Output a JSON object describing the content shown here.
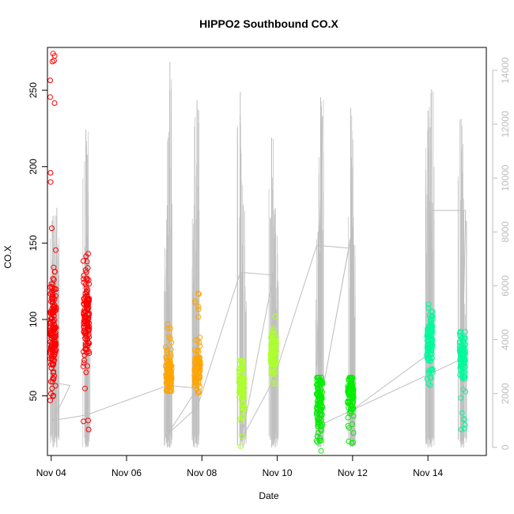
{
  "chart_data": {
    "type": "scatter",
    "title": "HIPPO2 Southbound CO.X",
    "xlabel": "Date",
    "ylabel": "CO.X",
    "x_ticks": [
      "Nov 04",
      "Nov 06",
      "Nov 08",
      "Nov 10",
      "Nov 12",
      "Nov 14"
    ],
    "y_ticks": [
      50,
      100,
      150,
      200,
      250
    ],
    "y2_ticks": [
      0,
      2000,
      4000,
      6000,
      8000,
      10000,
      12000,
      14000
    ],
    "xlim": [
      3.9,
      15.55
    ],
    "ylim": [
      11,
      278
    ],
    "y2lim": [
      -300,
      14850
    ],
    "grid": false,
    "colors": {
      "series": [
        "#ff0000",
        "#ffa500",
        "#adff2f",
        "#00ee00",
        "#00fa9a",
        "#00ffbf"
      ],
      "secondary_line": "#bebebe",
      "axis": "#000000",
      "secondary_axis": "#bdbdbd"
    },
    "flights": [
      {
        "x": 4.05,
        "center": 95,
        "spread": 22,
        "min": 47,
        "max": 274,
        "color": "#ff0000",
        "n": 170
      },
      {
        "x": 4.93,
        "center": 100,
        "spread": 18,
        "min": 28,
        "max": 143,
        "color": "#ff0000",
        "n": 130
      },
      {
        "x": 7.12,
        "center": 66,
        "spread": 9,
        "min": 53,
        "max": 97,
        "color": "#ffa500",
        "n": 100
      },
      {
        "x": 7.88,
        "center": 68,
        "spread": 9,
        "min": 52,
        "max": 117,
        "color": "#ffa500",
        "n": 100
      },
      {
        "x": 9.05,
        "center": 55,
        "spread": 14,
        "min": 17,
        "max": 73,
        "color": "#adff2f",
        "n": 100
      },
      {
        "x": 9.9,
        "center": 78,
        "spread": 11,
        "min": 58,
        "max": 102,
        "color": "#adff2f",
        "n": 100
      },
      {
        "x": 11.12,
        "center": 48,
        "spread": 14,
        "min": 14,
        "max": 62,
        "color": "#00ee00",
        "n": 110
      },
      {
        "x": 11.95,
        "center": 50,
        "spread": 12,
        "min": 19,
        "max": 62,
        "color": "#00ee00",
        "n": 100
      },
      {
        "x": 14.05,
        "center": 85,
        "spread": 11,
        "min": 57,
        "max": 110,
        "color": "#00fa9a",
        "n": 110
      },
      {
        "x": 14.92,
        "center": 75,
        "spread": 12,
        "min": 28,
        "max": 92,
        "color": "#00fa9a",
        "n": 100
      }
    ],
    "secondary_spikes": [
      {
        "x": 4.05,
        "top": 8600
      },
      {
        "x": 4.15,
        "top": 8900
      },
      {
        "x": 4.92,
        "top": 11800
      },
      {
        "x": 4.97,
        "top": 8100
      },
      {
        "x": 7.08,
        "top": 9000
      },
      {
        "x": 7.15,
        "top": 14300
      },
      {
        "x": 7.8,
        "top": 9000
      },
      {
        "x": 7.87,
        "top": 12900
      },
      {
        "x": 9.02,
        "top": 13200
      },
      {
        "x": 9.1,
        "top": 9000
      },
      {
        "x": 9.85,
        "top": 11500
      },
      {
        "x": 9.95,
        "top": 8900
      },
      {
        "x": 11.08,
        "top": 8000
      },
      {
        "x": 11.15,
        "top": 13000
      },
      {
        "x": 11.95,
        "top": 12600
      },
      {
        "x": 12.0,
        "top": 8200
      },
      {
        "x": 14.0,
        "top": 12500
      },
      {
        "x": 14.1,
        "top": 13300
      },
      {
        "x": 14.88,
        "top": 12200
      },
      {
        "x": 14.95,
        "top": 8800
      }
    ],
    "secondary_path": [
      [
        4.05,
        2400
      ],
      [
        4.5,
        2300
      ],
      [
        4.05,
        1000
      ],
      [
        4.93,
        1200
      ],
      [
        7.1,
        2300
      ],
      [
        7.88,
        2200
      ],
      [
        7.1,
        500
      ],
      [
        7.88,
        1500
      ],
      [
        9.02,
        6500
      ],
      [
        9.9,
        6400
      ],
      [
        9.05,
        300
      ],
      [
        9.9,
        2500
      ],
      [
        11.05,
        7500
      ],
      [
        11.9,
        7400
      ],
      [
        11.05,
        900
      ],
      [
        12.0,
        8200
      ],
      [
        12.0,
        1400
      ],
      [
        14.05,
        3500
      ],
      [
        14.1,
        8800
      ],
      [
        15.0,
        8800
      ],
      [
        14.92,
        3300
      ],
      [
        11.1,
        800
      ],
      [
        11.2,
        12300
      ],
      [
        11.05,
        3000
      ]
    ]
  }
}
